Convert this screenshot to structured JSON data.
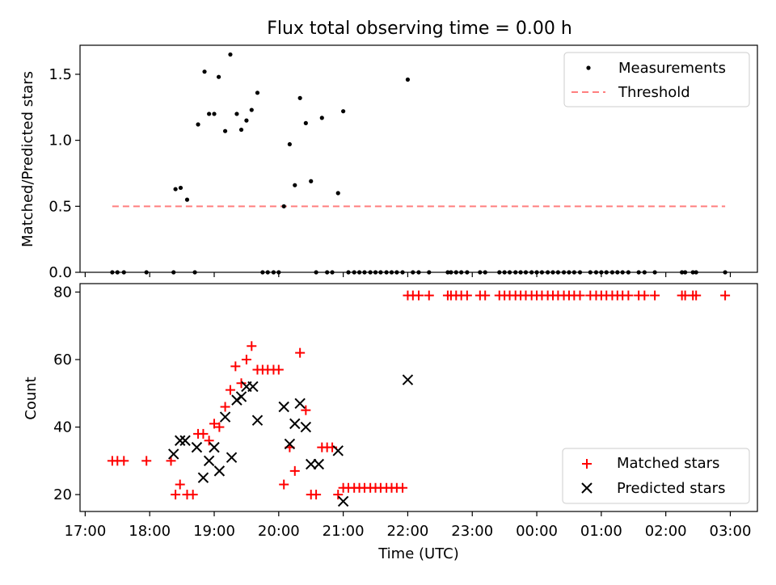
{
  "chart_data": [
    {
      "type": "scatter",
      "title": "Flux total observing time = 0.00 h",
      "xlabel": "",
      "ylabel": "Matched/Predicted stars",
      "xlim": [
        16.92,
        27.42
      ],
      "ylim": [
        0,
        1.72
      ],
      "y_ticks": [
        0.0,
        0.5,
        1.0,
        1.5
      ],
      "y_tick_labels": [
        "0.0",
        "0.5",
        "1.0",
        "1.5"
      ],
      "legend": {
        "placement": "top-right",
        "entries": [
          "Measurements",
          "Threshold"
        ]
      },
      "threshold": {
        "name": "Threshold",
        "value": 0.5,
        "x_range": [
          17.42,
          26.92
        ],
        "color": "#ff7f7f"
      },
      "series": [
        {
          "name": "Measurements",
          "color": "#000000",
          "points": [
            [
              17.42,
              0
            ],
            [
              17.5,
              0
            ],
            [
              17.6,
              0
            ],
            [
              17.95,
              0
            ],
            [
              18.37,
              0
            ],
            [
              18.7,
              0
            ],
            [
              18.4,
              0.63
            ],
            [
              18.48,
              0.64
            ],
            [
              18.58,
              0.55
            ],
            [
              18.75,
              1.12
            ],
            [
              18.85,
              1.52
            ],
            [
              18.92,
              1.2
            ],
            [
              19.0,
              1.2
            ],
            [
              19.07,
              1.48
            ],
            [
              19.17,
              1.07
            ],
            [
              19.25,
              1.65
            ],
            [
              19.35,
              1.2
            ],
            [
              19.42,
              1.08
            ],
            [
              19.5,
              1.15
            ],
            [
              19.58,
              1.23
            ],
            [
              19.67,
              1.36
            ],
            [
              19.75,
              0
            ],
            [
              19.83,
              0
            ],
            [
              19.92,
              0
            ],
            [
              20.0,
              0
            ],
            [
              20.08,
              0.5
            ],
            [
              20.17,
              0.97
            ],
            [
              20.25,
              0.66
            ],
            [
              20.33,
              1.32
            ],
            [
              20.42,
              1.13
            ],
            [
              20.5,
              0.69
            ],
            [
              20.58,
              0
            ],
            [
              20.67,
              1.17
            ],
            [
              20.75,
              0
            ],
            [
              20.83,
              0
            ],
            [
              20.92,
              0.6
            ],
            [
              21.0,
              1.22
            ],
            [
              21.08,
              0
            ],
            [
              21.17,
              0
            ],
            [
              21.25,
              0
            ],
            [
              21.33,
              0
            ],
            [
              21.42,
              0
            ],
            [
              21.5,
              0
            ],
            [
              21.58,
              0
            ],
            [
              21.67,
              0
            ],
            [
              21.75,
              0
            ],
            [
              21.83,
              0
            ],
            [
              21.92,
              0
            ],
            [
              22.0,
              1.46
            ],
            [
              22.08,
              0
            ],
            [
              22.17,
              0
            ],
            [
              22.33,
              0
            ],
            [
              22.62,
              0
            ],
            [
              22.67,
              0
            ],
            [
              22.75,
              0
            ],
            [
              22.83,
              0
            ],
            [
              22.92,
              0
            ],
            [
              23.12,
              0
            ],
            [
              23.2,
              0
            ],
            [
              23.42,
              0
            ],
            [
              23.5,
              0
            ],
            [
              23.58,
              0
            ],
            [
              23.67,
              0
            ],
            [
              23.75,
              0
            ],
            [
              23.83,
              0
            ],
            [
              23.92,
              0
            ],
            [
              24.0,
              0
            ],
            [
              24.08,
              0
            ],
            [
              24.17,
              0
            ],
            [
              24.25,
              0
            ],
            [
              24.33,
              0
            ],
            [
              24.42,
              0
            ],
            [
              24.5,
              0
            ],
            [
              24.58,
              0
            ],
            [
              24.67,
              0
            ],
            [
              24.83,
              0
            ],
            [
              24.92,
              0
            ],
            [
              25.0,
              0
            ],
            [
              25.08,
              0
            ],
            [
              25.17,
              0
            ],
            [
              25.25,
              0
            ],
            [
              25.33,
              0
            ],
            [
              25.42,
              0
            ],
            [
              25.58,
              0
            ],
            [
              25.67,
              0
            ],
            [
              25.83,
              0
            ],
            [
              26.25,
              0
            ],
            [
              26.3,
              0
            ],
            [
              26.42,
              0
            ],
            [
              26.47,
              0
            ],
            [
              26.92,
              0
            ]
          ]
        }
      ]
    },
    {
      "type": "scatter",
      "title": "",
      "xlabel": "Time (UTC)",
      "ylabel": "Count",
      "xlim": [
        16.92,
        27.42
      ],
      "ylim": [
        15.0,
        82.5
      ],
      "y_ticks": [
        20,
        40,
        60,
        80
      ],
      "y_tick_labels": [
        "20",
        "40",
        "60",
        "80"
      ],
      "x_ticks": [
        17,
        18,
        19,
        20,
        21,
        22,
        23,
        24,
        25,
        26,
        27
      ],
      "x_tick_labels": [
        "17:00",
        "18:00",
        "19:00",
        "20:00",
        "21:00",
        "22:00",
        "23:00",
        "00:00",
        "01:00",
        "02:00",
        "03:00"
      ],
      "legend": {
        "placement": "bottom-right",
        "entries": [
          "Matched stars",
          "Predicted stars"
        ]
      },
      "series": [
        {
          "name": "Matched stars",
          "marker": "plus",
          "color": "#ff0000",
          "points": [
            [
              17.42,
              30
            ],
            [
              17.5,
              30
            ],
            [
              17.6,
              30
            ],
            [
              17.95,
              30
            ],
            [
              18.33,
              30
            ],
            [
              18.4,
              20
            ],
            [
              18.47,
              23
            ],
            [
              18.58,
              20
            ],
            [
              18.67,
              20
            ],
            [
              18.75,
              38
            ],
            [
              18.83,
              38
            ],
            [
              18.92,
              36
            ],
            [
              19.0,
              41
            ],
            [
              19.08,
              40
            ],
            [
              19.17,
              46
            ],
            [
              19.25,
              51
            ],
            [
              19.33,
              58
            ],
            [
              19.42,
              53
            ],
            [
              19.5,
              60
            ],
            [
              19.58,
              64
            ],
            [
              19.67,
              57
            ],
            [
              19.75,
              57
            ],
            [
              19.83,
              57
            ],
            [
              19.92,
              57
            ],
            [
              20.0,
              57
            ],
            [
              20.08,
              23
            ],
            [
              20.17,
              34
            ],
            [
              20.25,
              27
            ],
            [
              20.33,
              62
            ],
            [
              20.42,
              45
            ],
            [
              20.5,
              20
            ],
            [
              20.58,
              20
            ],
            [
              20.67,
              34
            ],
            [
              20.75,
              34
            ],
            [
              20.83,
              34
            ],
            [
              20.92,
              20
            ],
            [
              21.0,
              22
            ],
            [
              21.08,
              22
            ],
            [
              21.17,
              22
            ],
            [
              21.25,
              22
            ],
            [
              21.33,
              22
            ],
            [
              21.42,
              22
            ],
            [
              21.5,
              22
            ],
            [
              21.58,
              22
            ],
            [
              21.67,
              22
            ],
            [
              21.75,
              22
            ],
            [
              21.83,
              22
            ],
            [
              21.92,
              22
            ],
            [
              22.0,
              79
            ],
            [
              22.08,
              79
            ],
            [
              22.17,
              79
            ],
            [
              22.33,
              79
            ],
            [
              22.62,
              79
            ],
            [
              22.67,
              79
            ],
            [
              22.75,
              79
            ],
            [
              22.83,
              79
            ],
            [
              22.92,
              79
            ],
            [
              23.12,
              79
            ],
            [
              23.2,
              79
            ],
            [
              23.42,
              79
            ],
            [
              23.5,
              79
            ],
            [
              23.58,
              79
            ],
            [
              23.67,
              79
            ],
            [
              23.75,
              79
            ],
            [
              23.83,
              79
            ],
            [
              23.92,
              79
            ],
            [
              24.0,
              79
            ],
            [
              24.08,
              79
            ],
            [
              24.17,
              79
            ],
            [
              24.25,
              79
            ],
            [
              24.33,
              79
            ],
            [
              24.42,
              79
            ],
            [
              24.5,
              79
            ],
            [
              24.58,
              79
            ],
            [
              24.67,
              79
            ],
            [
              24.83,
              79
            ],
            [
              24.92,
              79
            ],
            [
              25.0,
              79
            ],
            [
              25.08,
              79
            ],
            [
              25.17,
              79
            ],
            [
              25.25,
              79
            ],
            [
              25.33,
              79
            ],
            [
              25.42,
              79
            ],
            [
              25.58,
              79
            ],
            [
              25.67,
              79
            ],
            [
              25.83,
              79
            ],
            [
              26.25,
              79
            ],
            [
              26.3,
              79
            ],
            [
              26.42,
              79
            ],
            [
              26.47,
              79
            ],
            [
              26.92,
              79
            ]
          ]
        },
        {
          "name": "Predicted stars",
          "marker": "x",
          "color": "#000000",
          "points": [
            [
              18.37,
              32
            ],
            [
              18.47,
              36
            ],
            [
              18.55,
              36
            ],
            [
              18.73,
              34
            ],
            [
              18.83,
              25
            ],
            [
              18.92,
              30
            ],
            [
              19.0,
              34
            ],
            [
              19.08,
              27
            ],
            [
              19.17,
              43
            ],
            [
              19.27,
              31
            ],
            [
              19.35,
              48
            ],
            [
              19.42,
              49
            ],
            [
              19.5,
              52
            ],
            [
              19.6,
              52
            ],
            [
              19.67,
              42
            ],
            [
              20.08,
              46
            ],
            [
              20.17,
              35
            ],
            [
              20.25,
              41
            ],
            [
              20.33,
              47
            ],
            [
              20.42,
              40
            ],
            [
              20.5,
              29
            ],
            [
              20.62,
              29
            ],
            [
              20.92,
              33
            ],
            [
              21.0,
              18
            ],
            [
              22.0,
              54
            ]
          ]
        }
      ]
    }
  ]
}
